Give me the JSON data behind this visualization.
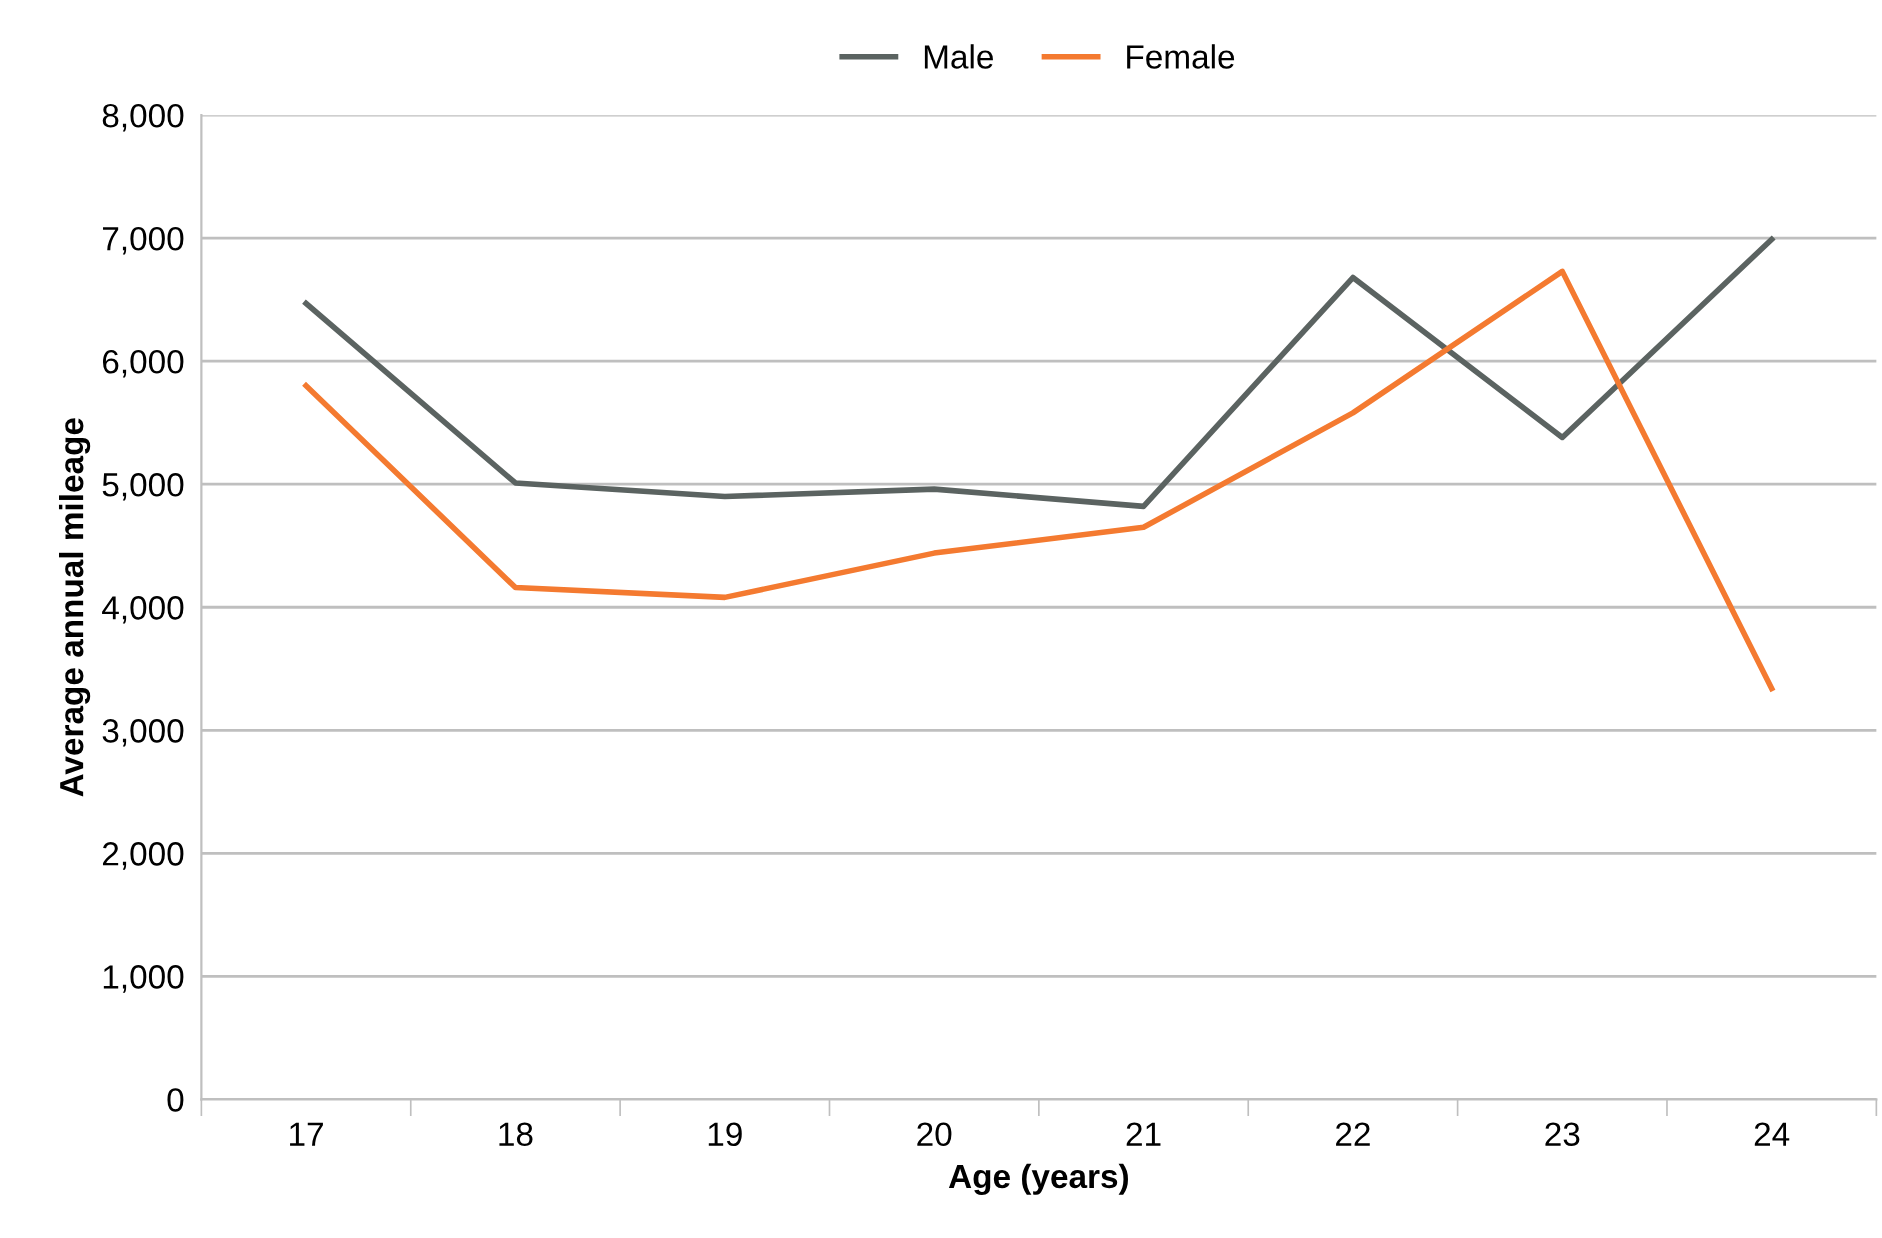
{
  "chart_data": {
    "type": "line",
    "xlabel": "Age (years)",
    "ylabel": "Average annual mileage",
    "categories": [
      "17",
      "18",
      "19",
      "20",
      "21",
      "22",
      "23",
      "24"
    ],
    "series": [
      {
        "name": "Male",
        "color": "#5b6361",
        "values": [
          6470,
          5010,
          4900,
          4960,
          4820,
          6680,
          5380,
          6990
        ]
      },
      {
        "name": "Female",
        "color": "#f47a30",
        "values": [
          5800,
          4160,
          4080,
          4440,
          4650,
          5580,
          6730,
          3340
        ]
      }
    ],
    "ylim": [
      0,
      8000
    ],
    "yticks": [
      {
        "value": 0,
        "label": "0"
      },
      {
        "value": 1000,
        "label": "1,000"
      },
      {
        "value": 2000,
        "label": "2,000"
      },
      {
        "value": 3000,
        "label": "3,000"
      },
      {
        "value": 4000,
        "label": "4,000"
      },
      {
        "value": 5000,
        "label": "5,000"
      },
      {
        "value": 6000,
        "label": "6,000"
      },
      {
        "value": 7000,
        "label": "7,000"
      },
      {
        "value": 8000,
        "label": "8,000"
      }
    ],
    "grid": "y",
    "legend": "top",
    "marker": "none",
    "line_style": "solid"
  }
}
